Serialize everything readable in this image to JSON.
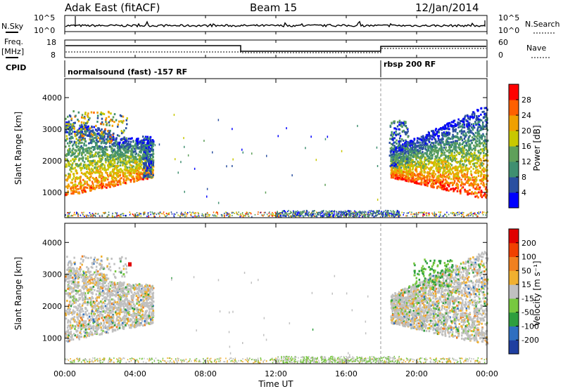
{
  "header": {
    "station": "Adak East (fitACF)",
    "beam": "Beam 15",
    "date": "12/Jan/2014"
  },
  "top_panel": {
    "left_label": "N.Sky",
    "right_label": "N.Search",
    "ticks": [
      "10^5",
      "10^0"
    ]
  },
  "freq_panel": {
    "left_label_1": "Freq.",
    "left_label_2": "[MHz]",
    "right_label": "Nave",
    "left_ticks": [
      18,
      8
    ],
    "right_ticks": [
      60,
      0
    ]
  },
  "cpid": {
    "label": "CPID",
    "segments": [
      "normalsound (fast) -157 RF",
      "rbsp 200 RF"
    ]
  },
  "chart_data": [
    {
      "type": "heatmap",
      "title": "",
      "xlabel": "Time UT",
      "ylabel": "Slant Range [km]",
      "x_ticks": [
        "00:00",
        "04:00",
        "08:00",
        "12:00",
        "16:00",
        "20:00",
        "00:00"
      ],
      "y_ticks": [
        1000,
        2000,
        3000,
        4000
      ],
      "ylim": [
        200,
        4600
      ],
      "xlim_hours": [
        0,
        24
      ],
      "colorbar": {
        "label": "Power [dB]",
        "ticks": [
          4,
          8,
          12,
          16,
          20,
          24,
          28
        ],
        "range": [
          0,
          32
        ],
        "colors": [
          "#0000ff",
          "#2a4fa0",
          "#3f8f70",
          "#5fa05a",
          "#c8c800",
          "#f0a000",
          "#ff6000",
          "#ff0000"
        ]
      }
    },
    {
      "type": "heatmap",
      "title": "",
      "xlabel": "Time UT",
      "ylabel": "Slant Range [km]",
      "x_ticks": [
        "00:00",
        "04:00",
        "08:00",
        "12:00",
        "16:00",
        "20:00",
        "00:00"
      ],
      "y_ticks": [
        1000,
        2000,
        3000,
        4000
      ],
      "ylim": [
        200,
        4600
      ],
      "xlim_hours": [
        0,
        24
      ],
      "colorbar": {
        "label": "Velocity [m s⁻¹]",
        "ticks": [
          200,
          100,
          50,
          15,
          -15,
          -50,
          -100,
          -200
        ],
        "colors": [
          "#1f3fa0",
          "#2f6fc0",
          "#2e9e3e",
          "#77c840",
          "#c0c0c0",
          "#f0b030",
          "#f08020",
          "#f04000",
          "#e00000"
        ]
      }
    }
  ],
  "colors": {
    "power_high": "#ff0000",
    "power_low": "#0000ff",
    "ground_scatter": "#c0c0c0",
    "vertical_marker": "#999999"
  }
}
